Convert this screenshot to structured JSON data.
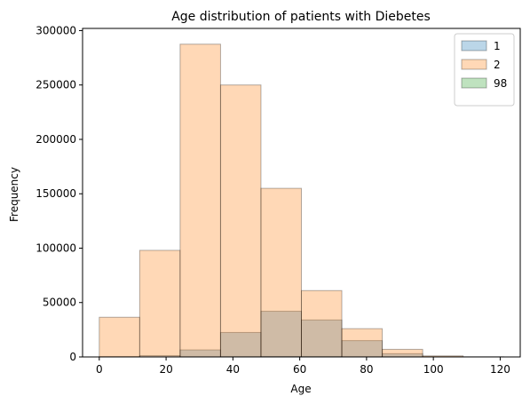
{
  "chart_data": {
    "type": "histogram",
    "title": "Age distribution of patients with Diebetes",
    "xlabel": "Age",
    "ylabel": "Frequency",
    "xlim": [
      -5,
      126
    ],
    "ylim": [
      0,
      302000
    ],
    "xticks": [
      0,
      20,
      40,
      60,
      80,
      100,
      120
    ],
    "yticks": [
      0,
      50000,
      100000,
      150000,
      200000,
      250000,
      300000
    ],
    "bin_edges": [
      0,
      12.1,
      24.2,
      36.3,
      48.4,
      60.5,
      72.6,
      84.7,
      96.8,
      108.9,
      121
    ],
    "legend_position": "top-right",
    "series": [
      {
        "name": "1",
        "color": "#1f77b4",
        "values": [
          300,
          1200,
          6500,
          22500,
          42000,
          34000,
          15000,
          3000,
          200,
          30
        ]
      },
      {
        "name": "2",
        "color": "#ff7f0e",
        "values": [
          36500,
          98000,
          287500,
          250000,
          155000,
          61000,
          26000,
          7000,
          1000,
          100
        ]
      },
      {
        "name": "98",
        "color": "#2ca02c",
        "values": [
          5,
          20,
          60,
          150,
          250,
          200,
          100,
          30,
          5,
          1
        ]
      }
    ]
  }
}
